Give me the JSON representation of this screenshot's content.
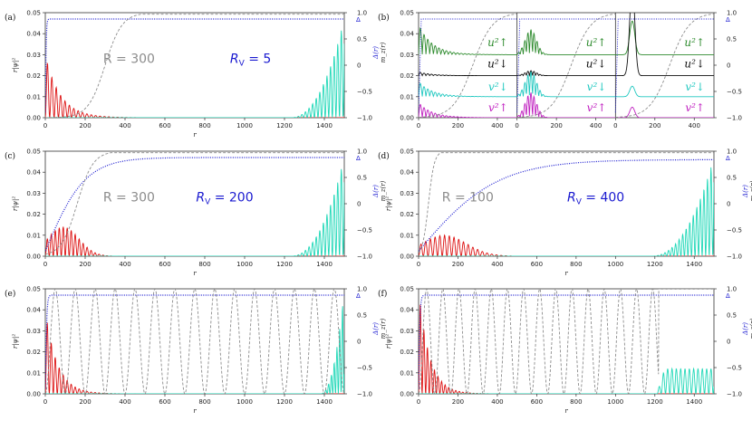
{
  "chart_data": [
    {
      "id": "a",
      "type": "line",
      "panel_label": "(a)",
      "xlabel": "r",
      "ylabel": "r|ψ|²",
      "right_label_top": "Δ(r)",
      "right_label_bottom": "m_z(r)",
      "delta_mark": "Δ",
      "xlim": [
        0,
        1500
      ],
      "ylim": [
        0,
        0.05
      ],
      "y2lim": [
        -1,
        1
      ],
      "xticks": [
        "0",
        "200",
        "400",
        "600",
        "800",
        "1000",
        "1200",
        "1400"
      ],
      "yticks": [
        "0.00",
        "0.01",
        "0.02",
        "0.03",
        "0.04",
        "0.05"
      ],
      "y2ticks": [
        "−1.0",
        "−0.5",
        "0",
        "0.5",
        "1.0"
      ],
      "annotations": [
        {
          "text": "R = 300",
          "color": "#8c8c8c",
          "x": 420,
          "y": 0.026
        },
        {
          "text": "R_V = 5",
          "color": "#1a1ad0",
          "x": 1030,
          "y": 0.026
        }
      ],
      "series": [
        {
          "name": "r|ψ|² core",
          "color": "#dd1111",
          "kind": "osc_decay",
          "A": 0.03,
          "decay": 75,
          "period": 22,
          "x0": 0
        },
        {
          "name": "r|ψ|² edge",
          "color": "#20d8b8",
          "kind": "osc_grow",
          "A": 0.047,
          "start": 1230,
          "end": 1500,
          "period": 18
        },
        {
          "name": "Δ(r)",
          "color": "#1a1ad0",
          "kind": "tanh",
          "sat": 0.88,
          "scale": 5
        },
        {
          "name": "m_z(r)",
          "color": "#8c8c8c",
          "kind": "tanh_dashed",
          "center": 300,
          "width": 170
        }
      ]
    },
    {
      "id": "b",
      "type": "line",
      "panel_label": "(b)",
      "xlim": [
        0,
        1500
      ],
      "ylim": [
        0,
        0.05
      ],
      "xticks": [
        "0",
        "200",
        "400",
        "0",
        "200",
        "400",
        "0",
        "200",
        "400"
      ],
      "yticks": [
        "0.00",
        "0.01",
        "0.02",
        "0.03",
        "0.04",
        "0.05"
      ],
      "y2ticks": [
        "−1.0",
        "−0.5",
        "0",
        "0.5",
        "1.0"
      ],
      "delta_mark": "Δ",
      "component_labels": [
        {
          "text": "u²↑",
          "color": "#2e8b2e"
        },
        {
          "text": "u²↓",
          "color": "#111111"
        },
        {
          "text": "v²↓",
          "color": "#20c8c0"
        },
        {
          "text": "v²↑",
          "color": "#c020c0"
        }
      ],
      "series": [
        {
          "name": "u²↑",
          "color": "#2e8b2e",
          "baseline": 0.03
        },
        {
          "name": "u²↓",
          "color": "#111111",
          "baseline": 0.02
        },
        {
          "name": "v²↓",
          "color": "#20c8c0",
          "baseline": 0.01
        },
        {
          "name": "v²↑",
          "color": "#c020c0",
          "baseline": 0.0
        }
      ]
    },
    {
      "id": "c",
      "type": "line",
      "panel_label": "(c)",
      "xlabel": "r",
      "ylabel": "r|ψ|²",
      "right_label_top": "Δ(r)",
      "right_label_bottom": "m_z(r)",
      "delta_mark": "Δ",
      "xlim": [
        0,
        1500
      ],
      "ylim": [
        0,
        0.05
      ],
      "xticks": [
        "0",
        "200",
        "400",
        "600",
        "800",
        "1000",
        "1200",
        "1400"
      ],
      "yticks": [
        "0.00",
        "0.01",
        "0.02",
        "0.03",
        "0.04",
        "0.05"
      ],
      "y2ticks": [
        "−1.0",
        "−0.5",
        "0",
        "0.5",
        "1.0"
      ],
      "annotations": [
        {
          "text": "R = 300",
          "color": "#8c8c8c",
          "x": 420,
          "y": 0.026
        },
        {
          "text": "R_V = 200",
          "color": "#1a1ad0",
          "x": 900,
          "y": 0.026
        }
      ],
      "series": [
        {
          "name": "r|ψ|² core",
          "color": "#dd1111",
          "kind": "osc_bump",
          "A": 0.014,
          "peak": 90,
          "width": 110,
          "period": 20
        },
        {
          "name": "r|ψ|² edge",
          "color": "#20d8b8",
          "kind": "osc_grow",
          "A": 0.047,
          "start": 1230,
          "end": 1500,
          "period": 18
        },
        {
          "name": "Δ(r)",
          "color": "#1a1ad0",
          "kind": "tanh",
          "sat": 0.88,
          "scale": 200
        },
        {
          "name": "m_z(r)",
          "color": "#8c8c8c",
          "kind": "tanh_dashed",
          "center": 160,
          "width": 160
        }
      ]
    },
    {
      "id": "d",
      "type": "line",
      "panel_label": "(d)",
      "xlabel": "r",
      "ylabel": "r|ψ|²",
      "right_label_top": "Δ(r)",
      "right_label_bottom": "m_z(r)",
      "delta_mark": "Δ",
      "xlim": [
        0,
        1500
      ],
      "ylim": [
        0,
        0.05
      ],
      "xticks": [
        "0",
        "200",
        "400",
        "600",
        "800",
        "1000",
        "1200",
        "1400"
      ],
      "yticks": [
        "0.00",
        "0.01",
        "0.02",
        "0.03",
        "0.04",
        "0.05"
      ],
      "y2ticks": [
        "−1.0",
        "−0.5",
        "0",
        "0.5",
        "1.0"
      ],
      "annotations": [
        {
          "text": "R = 100",
          "color": "#8c8c8c",
          "x": 250,
          "y": 0.026
        },
        {
          "text": "R_V = 400",
          "color": "#1a1ad0",
          "x": 900,
          "y": 0.026
        }
      ],
      "series": [
        {
          "name": "r|ψ|² core",
          "color": "#dd1111",
          "kind": "osc_bump",
          "A": 0.01,
          "peak": 130,
          "width": 160,
          "period": 24
        },
        {
          "name": "r|ψ|² edge",
          "color": "#20d8b8",
          "kind": "osc_grow",
          "A": 0.047,
          "start": 1180,
          "end": 1500,
          "period": 18
        },
        {
          "name": "Δ(r)",
          "color": "#1a1ad0",
          "kind": "tanh",
          "sat": 0.84,
          "scale": 400
        },
        {
          "name": "m_z(r)",
          "color": "#8c8c8c",
          "kind": "tanh_dashed",
          "center": 50,
          "width": 60
        }
      ]
    },
    {
      "id": "e",
      "type": "line",
      "panel_label": "(e)",
      "xlabel": "r",
      "ylabel": "r|ψ|²",
      "right_label_top": "Δ(r)",
      "right_label_bottom": "m_z(r)",
      "delta_mark": "Δ",
      "xlim": [
        0,
        1500
      ],
      "ylim": [
        0,
        0.05
      ],
      "xticks": [
        "0",
        "200",
        "400",
        "600",
        "800",
        "1000",
        "1200",
        "1400"
      ],
      "yticks": [
        "0.00",
        "0.01",
        "0.02",
        "0.03",
        "0.04",
        "0.05"
      ],
      "y2ticks": [
        "−1.0",
        "−0.5",
        "0",
        "0.5",
        "1.0"
      ],
      "series": [
        {
          "name": "r|ψ|² core",
          "color": "#dd1111",
          "kind": "osc_decay",
          "A": 0.04,
          "decay": 60,
          "period": 20,
          "x0": 0
        },
        {
          "name": "r|ψ|² edge",
          "color": "#20d8b8",
          "kind": "osc_grow",
          "A": 0.05,
          "start": 1380,
          "end": 1500,
          "period": 14
        },
        {
          "name": "Δ(r)",
          "color": "#1a1ad0",
          "kind": "tanh",
          "sat": 0.88,
          "scale": 8
        },
        {
          "name": "m_z(r)",
          "color": "#8c8c8c",
          "kind": "cos_dashed",
          "period": 100
        }
      ]
    },
    {
      "id": "f",
      "type": "line",
      "panel_label": "(f)",
      "xlabel": "r",
      "ylabel": "r|ψ|²",
      "right_label_top": "Δ(r)",
      "right_label_bottom": "m_z(r)",
      "delta_mark": "Δ",
      "xlim": [
        0,
        1500
      ],
      "ylim": [
        0,
        0.05
      ],
      "xticks": [
        "0",
        "200",
        "400",
        "600",
        "800",
        "1000",
        "1200",
        "1400"
      ],
      "yticks": [
        "0.00",
        "0.01",
        "0.02",
        "0.03",
        "0.04",
        "0.05"
      ],
      "y2ticks": [
        "−1.0",
        "−0.5",
        "0",
        "0.5",
        "1.0"
      ],
      "series": [
        {
          "name": "r|ψ|² core",
          "color": "#dd1111",
          "kind": "osc_decay",
          "A": 0.05,
          "decay": 55,
          "period": 18,
          "x0": 0
        },
        {
          "name": "r|ψ|² edge",
          "color": "#20d8b8",
          "kind": "osc_plateau",
          "A": 0.012,
          "start": 1210,
          "end": 1500,
          "period": 22
        },
        {
          "name": "Δ(r)",
          "color": "#1a1ad0",
          "kind": "tanh",
          "sat": 0.88,
          "scale": 8
        },
        {
          "name": "m_z(r)",
          "color": "#8c8c8c",
          "kind": "cos_dashed_end",
          "period": 82,
          "end": 1220
        }
      ]
    }
  ]
}
